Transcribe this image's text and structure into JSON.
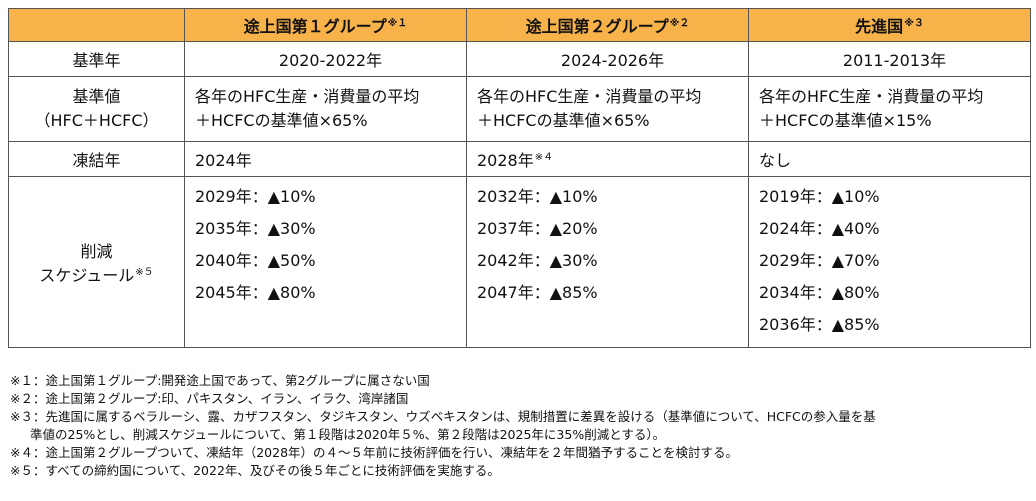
{
  "header": {
    "col1": {
      "label": "途上国第１グループ",
      "mark": "※１"
    },
    "col2": {
      "label": "途上国第２グループ",
      "mark": "※２"
    },
    "col3": {
      "label": "先進国",
      "mark": "※３"
    }
  },
  "rows": {
    "base_year": {
      "label": "基準年",
      "values": [
        "2020-2022年",
        "2024-2026年",
        "2011-2013年"
      ]
    },
    "base_value": {
      "label_line1": "基準値",
      "label_line2": "（HFC＋HCFC）",
      "values": [
        {
          "line1": "各年のHFC生産・消費量の平均",
          "line2": "＋HCFCの基準値×65%"
        },
        {
          "line1": "各年のHFC生産・消費量の平均",
          "line2": "＋HCFCの基準値×65%"
        },
        {
          "line1": "各年のHFC生産・消費量の平均",
          "line2": "＋HCFCの基準値×15%"
        }
      ]
    },
    "freeze_year": {
      "label": "凍結年",
      "values": [
        {
          "text": "2024年",
          "mark": ""
        },
        {
          "text": "2028年",
          "mark": "※４"
        },
        {
          "text": "なし",
          "mark": ""
        }
      ]
    },
    "schedule": {
      "label_line1": "削減",
      "label_line2": "スケジュール",
      "label_mark": "※５",
      "col1": [
        "2029年：▲10%",
        "2035年：▲30%",
        "2040年：▲50%",
        "2045年：▲80%"
      ],
      "col2": [
        "2032年：▲10%",
        "2037年：▲20%",
        "2042年：▲30%",
        "2047年：▲85%"
      ],
      "col3": [
        "2019年：▲10%",
        "2024年：▲40%",
        "2029年：▲70%",
        "2034年：▲80%",
        "2036年：▲85%"
      ]
    }
  },
  "notes": [
    "※１：途上国第１グループ:開発途上国であって、第2グループに属さない国",
    "※２：途上国第２グループ:印、パキスタン、イラン、イラク、湾岸諸国",
    "※３：先進国に属するベラルーシ、露、カザフスタン、タジキスタン、ウズベキスタンは、規制措置に差異を設ける（基準値について、HCFCの参入量を基",
    "準値の25%とし、削減スケジュールについて、第１段階は2020年５%、第２段階は2025年に35%削減とする）。",
    "※４：途上国第２グループついて、凍結年（2028年）の４～５年前に技術評価を行い、凍結年を２年間猶予することを検討する。",
    "※５：すべての締約国について、2022年、及びその後５年ごとに技術評価を実施する。"
  ],
  "colors": {
    "header_bg": "#f7b24a",
    "border": "#555555"
  }
}
